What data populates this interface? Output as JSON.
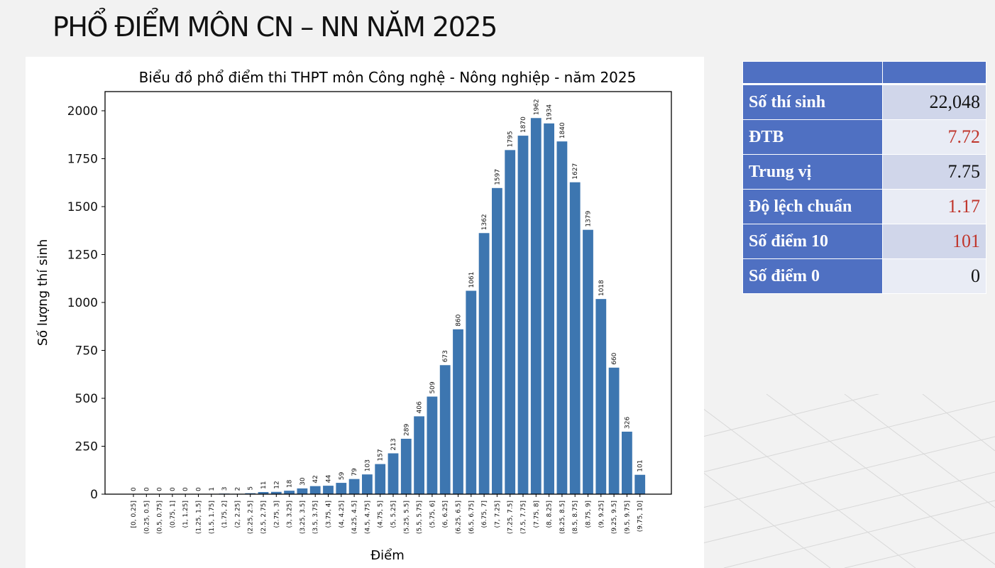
{
  "slide": {
    "title": "PHỔ ĐIỂM MÔN CN – NN NĂM 2025"
  },
  "stats": {
    "rows": [
      {
        "label": "Số thí sinh",
        "value": "22,048",
        "color": "#111111"
      },
      {
        "label": "ĐTB",
        "value": "7.72",
        "color": "#c0362c"
      },
      {
        "label": "Trung vị",
        "value": "7.75",
        "color": "#111111"
      },
      {
        "label": "Độ lệch chuẩn",
        "value": "1.17",
        "color": "#c0362c"
      },
      {
        "label": "Số điểm 10",
        "value": "101",
        "color": "#c0362c"
      },
      {
        "label": "Số điểm 0",
        "value": "0",
        "color": "#111111"
      }
    ],
    "header_color": "#4f70c2"
  },
  "chart_data": {
    "type": "bar",
    "title": "Biểu đồ phổ điểm thi THPT môn Công nghệ - Nông nghiệp - năm 2025",
    "xlabel": "Điểm",
    "ylabel": "Số lượng thí sinh",
    "ylim": [
      0,
      2100
    ],
    "yticks": [
      0,
      250,
      500,
      750,
      1000,
      1250,
      1500,
      1750,
      2000
    ],
    "bar_color": "#3d76b0",
    "grid": false,
    "categories": [
      "[0, 0.25]",
      "(0.25, 0.5]",
      "(0.5, 0.75]",
      "(0.75, 1]",
      "(1, 1.25]",
      "(1.25, 1.5]",
      "(1.5, 1.75]",
      "(1.75, 2]",
      "(2, 2.25]",
      "(2.25, 2.5]",
      "(2.5, 2.75]",
      "(2.75, 3]",
      "(3, 3.25]",
      "(3.25, 3.5]",
      "(3.5, 3.75]",
      "(3.75, 4]",
      "(4, 4.25]",
      "(4.25, 4.5]",
      "(4.5, 4.75]",
      "(4.75, 5]",
      "(5, 5.25]",
      "(5.25, 5.5]",
      "(5.5, 5.75]",
      "(5.75, 6]",
      "(6, 6.25]",
      "(6.25, 6.5]",
      "(6.5, 6.75]",
      "(6.75, 7]",
      "(7, 7.25]",
      "(7.25, 7.5]",
      "(7.5, 7.75]",
      "(7.75, 8]",
      "(8, 8.25]",
      "(8.25, 8.5]",
      "(8.5, 8.75]",
      "(8.75, 9]",
      "(9, 9.25]",
      "(9.25, 9.5]",
      "(9.5, 9.75]",
      "(9.75, 10]"
    ],
    "values": [
      0,
      0,
      0,
      0,
      0,
      0,
      1,
      3,
      2,
      5,
      11,
      12,
      18,
      30,
      42,
      44,
      59,
      79,
      103,
      157,
      213,
      289,
      406,
      509,
      673,
      860,
      1061,
      1362,
      1597,
      1795,
      1870,
      1962,
      1934,
      1840,
      1627,
      1379,
      1018,
      660,
      326,
      101
    ]
  }
}
